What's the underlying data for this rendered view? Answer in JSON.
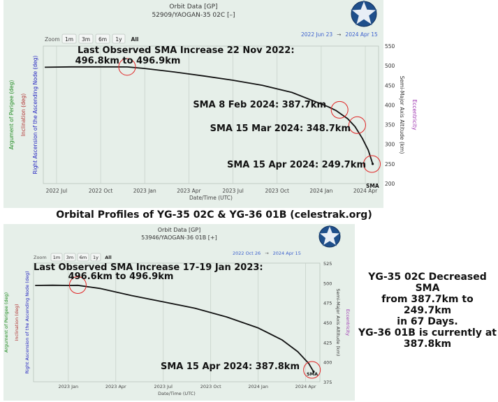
{
  "caption": "Orbital Profiles of YG-35 02C & YG-36 01B (celestrak.org)",
  "side_note": {
    "lines": [
      "YG-35 02C Decreased SMA",
      "from 387.7km to 249.7km",
      "in 67 Days.",
      "YG-36 01B is currently at",
      "387.8km"
    ]
  },
  "zoom_label": "Zoom",
  "zoom_buttons": [
    "1m",
    "3m",
    "6m",
    "1y",
    "All"
  ],
  "colors": {
    "panel_bg": "#e6efe9",
    "date_range": "#3a5fcd",
    "annotation_circle": "#e02424",
    "series_line": "#111111",
    "argument_of_perigee": "#1f8a1f",
    "inclination": "#b03030",
    "raan": "#2020c0",
    "eccentricity": "#9b2fae"
  },
  "icons": [
    "star-badge-icon"
  ],
  "chart_data": [
    {
      "type": "line",
      "title": "Orbit Data [GP]",
      "subtitle": "52909/YAOGAN-35 02C [–]",
      "date_range": {
        "from": "2022 Jun 23",
        "arrow": "→",
        "to": "2024 Apr 15"
      },
      "xlabel": "Date/Time (UTC)",
      "xticks": [
        "2022 Jul",
        "2022 Oct",
        "2023 Jan",
        "2023 Apr",
        "2023 Jul",
        "2023 Oct",
        "2024 Jan",
        "2024 Apr"
      ],
      "left_axis_labels": [
        "Argument of Perigee (deg)",
        "Inclination (deg)",
        "Right Ascension of the Ascending Node (deg)"
      ],
      "ylabel": "Semi-Major Axis Altitude (km)",
      "ylabel2": "Eccentricity",
      "ylim": [
        200,
        550
      ],
      "yticks": [
        200,
        250,
        300,
        350,
        400,
        450,
        500,
        550
      ],
      "xlim_months": [
        -0.9,
        21.9
      ],
      "series": [
        {
          "name": "SMA",
          "x_months": [
            -0.8,
            1,
            3,
            4.8,
            6,
            8,
            10,
            12,
            14,
            16,
            17.5,
            18.5,
            19,
            19.8,
            20.3,
            20.8,
            21.2,
            21.5
          ],
          "values": [
            496,
            497,
            497,
            496.8,
            493,
            484,
            474,
            463,
            450,
            432,
            410,
            395,
            386,
            365,
            345,
            315,
            285,
            250
          ]
        }
      ],
      "series_label": "SMA",
      "annotations": [
        {
          "lines": [
            "Last Observed SMA Increase 22 Nov 2022:",
            "496.8km to 496.9km"
          ],
          "x_month": 4.8,
          "y": 497
        },
        {
          "lines": [
            "SMA 8 Feb 2024:  387.7km"
          ],
          "x_month": 19.25,
          "y": 387.7
        },
        {
          "lines": [
            "SMA 15 Mar 2024:  348.7km"
          ],
          "x_month": 20.45,
          "y": 348.7
        },
        {
          "lines": [
            "SMA 15 Apr 2024:  249.7km"
          ],
          "x_month": 21.45,
          "y": 249.7
        }
      ]
    },
    {
      "type": "line",
      "title": "Orbit Data [GP]",
      "subtitle": "53946/YAOGAN-36 01B [+]",
      "date_range": {
        "from": "2022 Oct 26",
        "arrow": "→",
        "to": "2024 Apr 15"
      },
      "xlabel": "Date/Time (UTC)",
      "xticks": [
        "2023 Jan",
        "2023 Apr",
        "2023 Jul",
        "2023 Oct",
        "2024 Jan",
        "2024 Apr"
      ],
      "left_axis_labels": [
        "Argument of Perigee (deg)",
        "Inclination (deg)",
        "Right Ascension of the Ascending Node (deg)"
      ],
      "ylabel": "Semi-Major Axis Altitude (km)",
      "ylabel2": "Eccentricity",
      "ylim": [
        375,
        525
      ],
      "yticks": [
        375,
        400,
        425,
        450,
        475,
        500,
        525
      ],
      "xlim_months": [
        -2.2,
        15.9
      ],
      "series": [
        {
          "name": "SMA",
          "x_months": [
            -2.1,
            -1,
            0,
            0.6,
            2,
            4,
            6,
            8,
            10,
            12,
            13.5,
            14.5,
            15.2,
            15.5
          ],
          "values": [
            496.8,
            497,
            496.8,
            496.9,
            493,
            484,
            476,
            468,
            457,
            443,
            428,
            413,
            398,
            387.8
          ]
        }
      ],
      "series_label": "SMA",
      "annotations": [
        {
          "lines": [
            "Last Observed SMA Increase 17-19 Jan 2023:",
            "496.6km to 496.9km"
          ],
          "x_month": 0.6,
          "y": 497.2
        },
        {
          "lines": [
            "SMA 15 Apr 2024:  387.8km"
          ],
          "x_month": 15.4,
          "y": 390
        }
      ]
    }
  ]
}
